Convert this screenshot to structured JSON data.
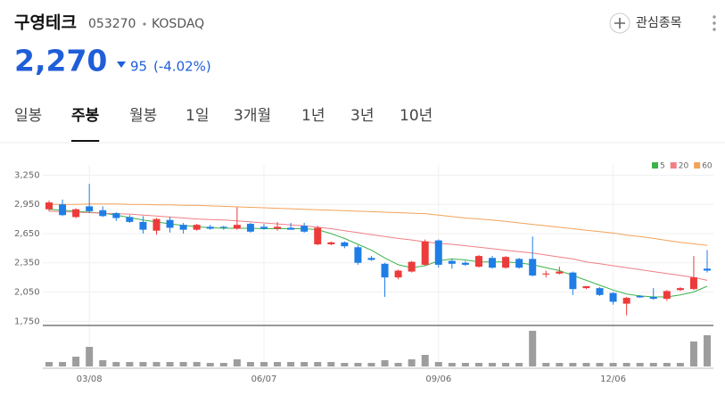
{
  "header": {
    "name": "구영테크",
    "code": "053270",
    "market": "KOSDAQ",
    "price": "2,270",
    "change": "95",
    "change_pct": "(-4.02%)",
    "watch": "관심종목"
  },
  "tabs": [
    "일봉",
    "주봉",
    "월봉",
    "1일",
    "3개월",
    "1년",
    "3년",
    "10년"
  ],
  "active_tab": 1,
  "chart_data": {
    "type": "candlestick",
    "categories": [
      null,
      null,
      null,
      "03/08",
      null,
      null,
      null,
      null,
      null,
      null,
      null,
      null,
      null,
      null,
      null,
      null,
      "06/07",
      null,
      null,
      null,
      null,
      null,
      null,
      null,
      null,
      null,
      null,
      null,
      null,
      "09/06",
      null,
      null,
      null,
      null,
      null,
      null,
      null,
      null,
      null,
      null,
      null,
      null,
      "12/06",
      null,
      null,
      null,
      null,
      null,
      null,
      null
    ],
    "open": [
      2900,
      2950,
      2820,
      2930,
      2890,
      2860,
      2820,
      2770,
      2680,
      2790,
      2740,
      2690,
      2720,
      2720,
      2700,
      2750,
      2720,
      2700,
      2710,
      2730,
      2540,
      2540,
      2560,
      2510,
      2400,
      2340,
      2200,
      2260,
      2330,
      2580,
      2370,
      2350,
      2310,
      2400,
      2300,
      2390,
      2390,
      2230,
      2240,
      2250,
      2090,
      2090,
      2040,
      1930,
      2010,
      2000,
      1980,
      2070,
      2080,
      2290
    ],
    "high": [
      2990,
      3000,
      2910,
      3160,
      2930,
      2870,
      2840,
      2830,
      2810,
      2820,
      2760,
      2750,
      2740,
      2730,
      2920,
      2760,
      2750,
      2770,
      2760,
      2760,
      2730,
      2570,
      2570,
      2530,
      2420,
      2350,
      2280,
      2370,
      2590,
      2590,
      2390,
      2370,
      2430,
      2420,
      2420,
      2400,
      2620,
      2270,
      2310,
      2260,
      2110,
      2100,
      2050,
      2000,
      2020,
      2090,
      2070,
      2100,
      2420,
      2480
    ],
    "low": [
      2880,
      2830,
      2810,
      2860,
      2820,
      2780,
      2760,
      2650,
      2640,
      2660,
      2650,
      2680,
      2690,
      2690,
      2690,
      2660,
      2690,
      2680,
      2690,
      2660,
      2530,
      2530,
      2500,
      2330,
      2370,
      2000,
      2180,
      2250,
      2320,
      2300,
      2290,
      2320,
      2300,
      2290,
      2290,
      2290,
      2210,
      2200,
      2230,
      2020,
      2080,
      2010,
      1920,
      1810,
      1990,
      1970,
      1960,
      2060,
      2070,
      2250
    ],
    "close": [
      2970,
      2840,
      2900,
      2880,
      2830,
      2810,
      2770,
      2690,
      2800,
      2710,
      2690,
      2740,
      2700,
      2710,
      2740,
      2670,
      2700,
      2720,
      2690,
      2670,
      2710,
      2560,
      2520,
      2350,
      2380,
      2200,
      2270,
      2360,
      2570,
      2330,
      2340,
      2330,
      2420,
      2300,
      2410,
      2300,
      2220,
      2240,
      2260,
      2080,
      2110,
      2020,
      1950,
      1990,
      1995,
      1980,
      2060,
      2090,
      2200,
      2270
    ],
    "up_color": "#ec3b3b",
    "down_color": "#1f7ee6",
    "series": [
      {
        "name": "5",
        "color": "#3cb34a",
        "values": [
          2900,
          2890,
          2880,
          2870,
          2860,
          2840,
          2815,
          2790,
          2770,
          2750,
          2735,
          2720,
          2710,
          2705,
          2705,
          2705,
          2700,
          2700,
          2700,
          2700,
          2690,
          2650,
          2600,
          2540,
          2480,
          2400,
          2330,
          2300,
          2320,
          2370,
          2390,
          2380,
          2360,
          2360,
          2360,
          2350,
          2330,
          2300,
          2270,
          2220,
          2170,
          2120,
          2070,
          2030,
          2010,
          2000,
          2000,
          2020,
          2050,
          2110
        ]
      },
      {
        "name": "20",
        "color": "#ef7f86",
        "values": [
          2880,
          2875,
          2870,
          2865,
          2860,
          2855,
          2850,
          2840,
          2830,
          2820,
          2810,
          2800,
          2795,
          2790,
          2780,
          2770,
          2760,
          2750,
          2740,
          2730,
          2715,
          2700,
          2680,
          2660,
          2640,
          2620,
          2600,
          2585,
          2565,
          2550,
          2540,
          2525,
          2510,
          2495,
          2480,
          2465,
          2450,
          2430,
          2410,
          2390,
          2360,
          2340,
          2320,
          2300,
          2280,
          2260,
          2240,
          2220,
          2200,
          2170
        ]
      },
      {
        "name": "60",
        "color": "#f4a25a",
        "values": [
          2950,
          2950,
          2950,
          2955,
          2955,
          2955,
          2950,
          2950,
          2945,
          2945,
          2940,
          2940,
          2935,
          2930,
          2925,
          2920,
          2915,
          2910,
          2905,
          2900,
          2895,
          2890,
          2885,
          2880,
          2875,
          2870,
          2865,
          2860,
          2855,
          2840,
          2825,
          2810,
          2800,
          2790,
          2775,
          2760,
          2745,
          2730,
          2715,
          2700,
          2685,
          2670,
          2655,
          2635,
          2620,
          2600,
          2580,
          2560,
          2545,
          2530
        ]
      }
    ],
    "volume": [
      5,
      5,
      11,
      22,
      7,
      5,
      5,
      5,
      5,
      5,
      5,
      5,
      4,
      4,
      8,
      5,
      5,
      5,
      5,
      5,
      5,
      5,
      4,
      4,
      4,
      7,
      4,
      8,
      13,
      5,
      4,
      4,
      4,
      4,
      4,
      4,
      40,
      4,
      4,
      4,
      4,
      4,
      4,
      4,
      4,
      4,
      4,
      4,
      28,
      35
    ],
    "volume_color": "#9d9d9d",
    "ylim": [
      1725,
      3355
    ],
    "yticks": [
      {
        "value": 3250,
        "label": "3,250"
      },
      {
        "value": 2950,
        "label": "2,950"
      },
      {
        "value": 2650,
        "label": "2,650"
      },
      {
        "value": 2350,
        "label": "2,350"
      },
      {
        "value": 2050,
        "label": "2,050"
      },
      {
        "value": 1750,
        "label": "1,750"
      }
    ],
    "grid": true
  }
}
